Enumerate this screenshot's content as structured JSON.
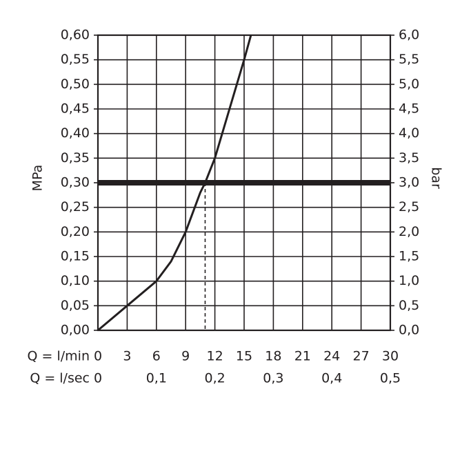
{
  "chart_data": {
    "type": "line",
    "ylabel": "MPa",
    "y2label": "bar",
    "xlabel": "Q = l/min",
    "x2label": "Q = l/sec",
    "xlim": [
      0,
      30
    ],
    "xticks": [
      0,
      3,
      6,
      9,
      12,
      15,
      18,
      21,
      24,
      27,
      30
    ],
    "x2lim": [
      0,
      0.5
    ],
    "x2ticks": [
      0,
      {
        "value": 0.1,
        "label": "0,1"
      },
      {
        "value": 0.2,
        "label": "0,2"
      },
      {
        "value": 0.3,
        "label": "0,3"
      },
      {
        "value": 0.4,
        "label": "0,4"
      },
      {
        "value": 0.5,
        "label": "0,5"
      }
    ],
    "ylim": [
      0,
      0.6
    ],
    "yticks": [
      {
        "value": 0,
        "label": "0,00"
      },
      {
        "value": 0.05,
        "label": "0,05"
      },
      {
        "value": 0.1,
        "label": "0,10"
      },
      {
        "value": 0.15,
        "label": "0,15"
      },
      {
        "value": 0.2,
        "label": "0,20"
      },
      {
        "value": 0.25,
        "label": "0,25"
      },
      {
        "value": 0.3,
        "label": "0,30"
      },
      {
        "value": 0.35,
        "label": "0,35"
      },
      {
        "value": 0.4,
        "label": "0,40"
      },
      {
        "value": 0.45,
        "label": "0,45"
      },
      {
        "value": 0.5,
        "label": "0,50"
      },
      {
        "value": 0.55,
        "label": "0,55"
      },
      {
        "value": 0.6,
        "label": "0,60"
      }
    ],
    "y2lim": [
      0,
      6
    ],
    "y2ticks": [
      {
        "value": 0,
        "label": "0,0"
      },
      {
        "value": 0.5,
        "label": "0,5"
      },
      {
        "value": 1,
        "label": "1,0"
      },
      {
        "value": 1.5,
        "label": "1,5"
      },
      {
        "value": 2,
        "label": "2,0"
      },
      {
        "value": 2.5,
        "label": "2,5"
      },
      {
        "value": 3,
        "label": "3,0"
      },
      {
        "value": 3.5,
        "label": "3,5"
      },
      {
        "value": 4,
        "label": "4,0"
      },
      {
        "value": 4.5,
        "label": "4,5"
      },
      {
        "value": 5,
        "label": "5,0"
      },
      {
        "value": 5.5,
        "label": "5,5"
      },
      {
        "value": 6,
        "label": "6,0"
      }
    ],
    "grid": true,
    "series": [
      {
        "color": "#231f20",
        "x": [
          0,
          3,
          6,
          7.5,
          9,
          10.5,
          11,
          12,
          13.5,
          15,
          15.7
        ],
        "values": [
          0,
          0.05,
          0.1,
          0.14,
          0.2,
          0.28,
          0.3,
          0.35,
          0.45,
          0.55,
          0.6
        ]
      }
    ],
    "reference_y": 0.3,
    "reference_x": 11
  }
}
